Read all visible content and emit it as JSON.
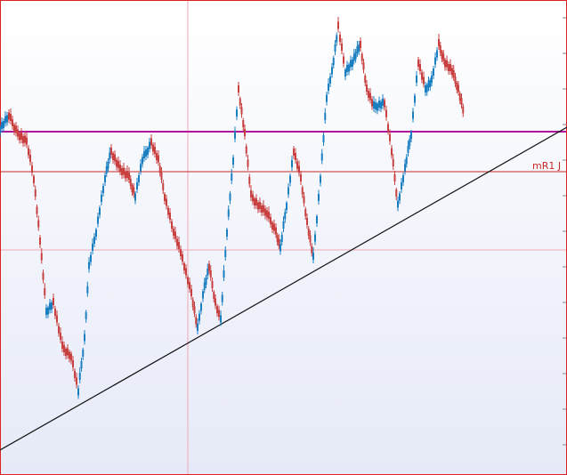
{
  "levels": [
    {
      "label": "mR1 J"
    }
  ]
}
